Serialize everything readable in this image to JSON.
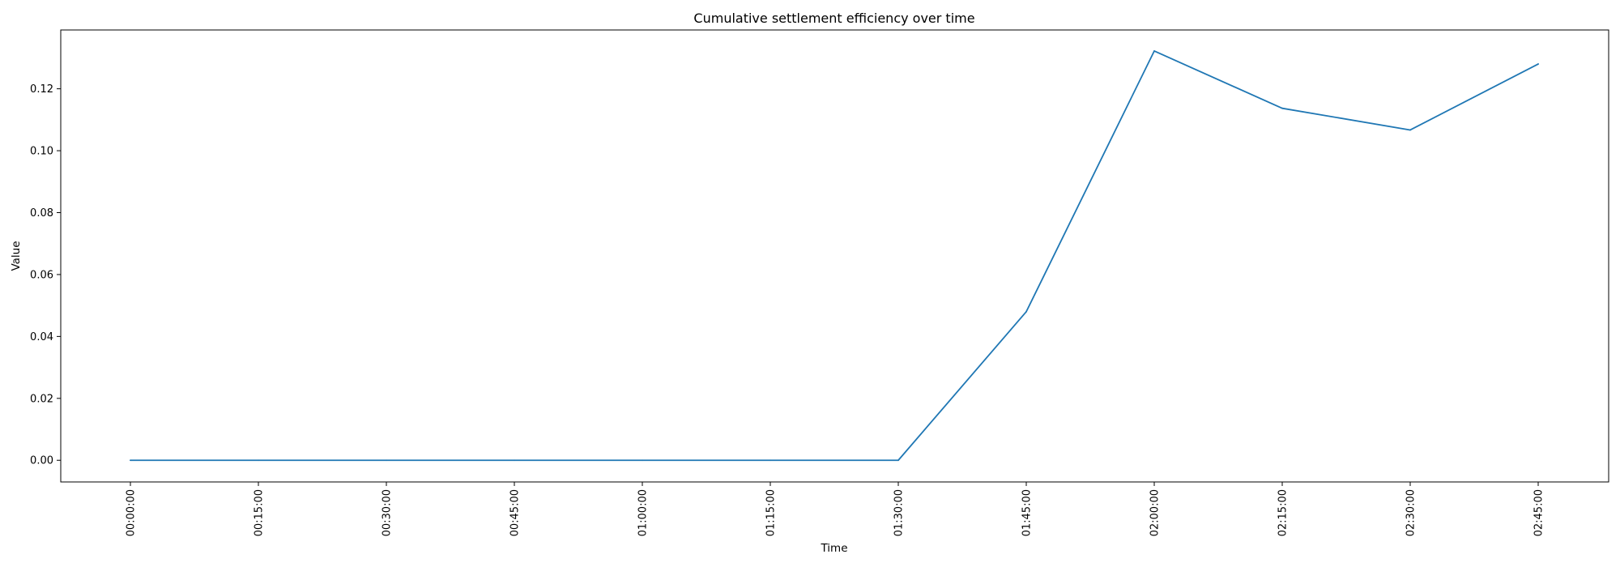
{
  "chart_data": {
    "type": "line",
    "title": "Cumulative settlement efficiency over time",
    "xlabel": "Time",
    "ylabel": "Value",
    "x": [
      "00:00:00",
      "00:15:00",
      "00:30:00",
      "00:45:00",
      "01:00:00",
      "01:15:00",
      "01:30:00",
      "01:45:00",
      "02:00:00",
      "02:15:00",
      "02:30:00",
      "02:45:00"
    ],
    "yticks": [
      "0.00",
      "0.02",
      "0.04",
      "0.06",
      "0.08",
      "0.10",
      "0.12"
    ],
    "ylim": [
      -0.007,
      0.139
    ],
    "grid": false,
    "legend": "none",
    "series": [
      {
        "color": "#1f77b4",
        "values": [
          0,
          0,
          0,
          0,
          0,
          0,
          0,
          0.048,
          0.1322,
          0.1137,
          0.1067,
          0.128
        ]
      }
    ]
  }
}
